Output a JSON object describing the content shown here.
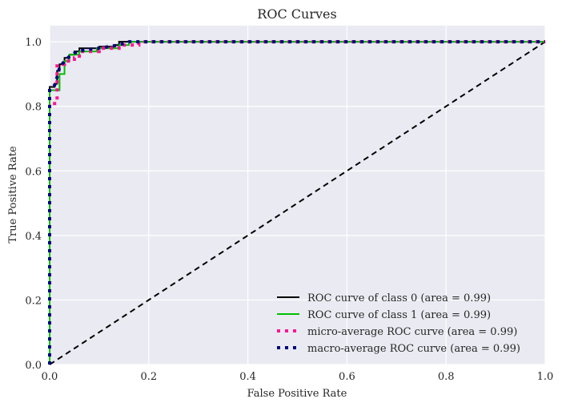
{
  "chart_data": {
    "type": "line",
    "title": "ROC Curves",
    "xlabel": "False Positive Rate",
    "ylabel": "True Positive Rate",
    "xlim": [
      0.0,
      1.0
    ],
    "ylim": [
      0.0,
      1.05
    ],
    "xticks": [
      "0.0",
      "0.2",
      "0.4",
      "0.6",
      "0.8",
      "1.0"
    ],
    "yticks": [
      "0.0",
      "0.2",
      "0.4",
      "0.6",
      "0.8",
      "1.0"
    ],
    "grid": true,
    "legend_position": "lower-right",
    "background": "#eaeaf2",
    "series": [
      {
        "name": "ROC curve of class 0 (area = 0.99)",
        "color": "#000000",
        "style": "solid",
        "x": [
          0.0,
          0.0,
          0.01,
          0.01,
          0.015,
          0.015,
          0.02,
          0.02,
          0.03,
          0.03,
          0.04,
          0.04,
          0.05,
          0.05,
          0.06,
          0.06,
          0.075,
          0.075,
          0.1,
          0.1,
          0.13,
          0.13,
          0.14,
          0.14,
          1.0
        ],
        "y": [
          0.0,
          0.86,
          0.86,
          0.87,
          0.87,
          0.91,
          0.91,
          0.93,
          0.93,
          0.95,
          0.95,
          0.96,
          0.96,
          0.97,
          0.97,
          0.98,
          0.98,
          0.98,
          0.98,
          0.985,
          0.985,
          0.99,
          0.99,
          1.0,
          1.0
        ]
      },
      {
        "name": "ROC curve of class 1 (area = 0.99)",
        "color": "#00bf00",
        "style": "solid",
        "x": [
          0.0,
          0.0,
          0.02,
          0.02,
          0.03,
          0.03,
          0.04,
          0.04,
          0.06,
          0.06,
          0.095,
          0.095,
          0.14,
          0.14,
          0.16,
          0.16,
          1.0
        ],
        "y": [
          0.0,
          0.85,
          0.85,
          0.9,
          0.9,
          0.94,
          0.94,
          0.96,
          0.96,
          0.97,
          0.97,
          0.98,
          0.98,
          0.99,
          0.99,
          1.0,
          1.0
        ]
      },
      {
        "name": "micro-average ROC curve (area = 0.99)",
        "color": "#ff1493",
        "style": "dotted",
        "x": [
          0.0,
          0.0,
          0.01,
          0.01,
          0.015,
          0.015,
          0.02,
          0.02,
          0.03,
          0.03,
          0.05,
          0.05,
          0.06,
          0.06,
          0.1,
          0.1,
          0.14,
          0.14,
          0.18,
          0.18,
          1.0
        ],
        "y": [
          0.0,
          0.8,
          0.8,
          0.82,
          0.82,
          0.93,
          0.93,
          0.93,
          0.93,
          0.94,
          0.94,
          0.95,
          0.95,
          0.97,
          0.97,
          0.98,
          0.98,
          0.99,
          0.99,
          1.0,
          1.0
        ]
      },
      {
        "name": "macro-average ROC curve (area = 0.99)",
        "color": "#000080",
        "style": "dotted",
        "x": [
          0.0,
          0.0,
          0.01,
          0.015,
          0.02,
          0.03,
          0.04,
          0.05,
          0.07,
          0.1,
          0.14,
          0.16,
          1.0
        ],
        "y": [
          0.0,
          0.855,
          0.865,
          0.89,
          0.92,
          0.94,
          0.955,
          0.965,
          0.975,
          0.98,
          0.99,
          1.0,
          1.0
        ]
      },
      {
        "name": "",
        "color": "#000000",
        "style": "dashed",
        "x": [
          0.0,
          1.0
        ],
        "y": [
          0.0,
          1.0
        ]
      }
    ]
  }
}
